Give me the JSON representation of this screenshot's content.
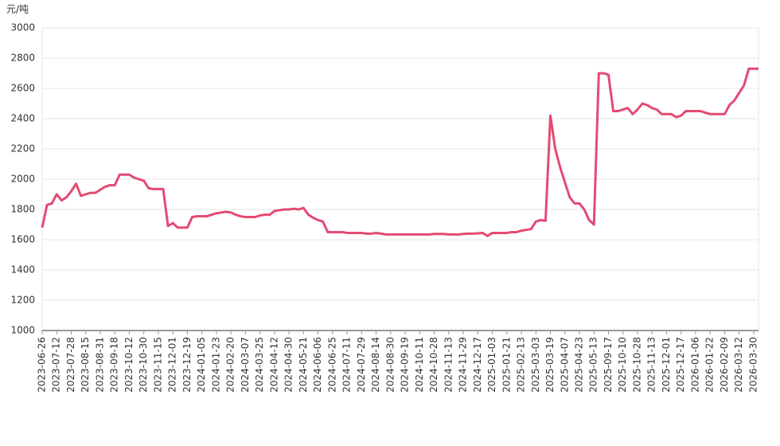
{
  "chart_data": {
    "type": "line",
    "y_label": "元/吨",
    "categories": [
      "2023-06-26",
      null,
      null,
      "2023-07-12",
      null,
      null,
      "2023-07-28",
      null,
      null,
      "2023-08-15",
      null,
      null,
      "2023-08-31",
      null,
      null,
      "2023-09-18",
      null,
      null,
      "2023-10-12",
      null,
      null,
      "2023-10-30",
      null,
      null,
      "2023-11-15",
      null,
      null,
      "2023-12-01",
      null,
      null,
      "2023-12-19",
      null,
      null,
      "2024-01-05",
      null,
      null,
      "2024-01-23",
      null,
      null,
      "2024-02-20",
      null,
      null,
      "2024-03-07",
      null,
      null,
      "2024-03-25",
      null,
      null,
      "2024-04-12",
      null,
      null,
      "2024-04-30",
      null,
      null,
      "2024-05-21",
      null,
      null,
      "2024-06-06",
      null,
      null,
      "2024-06-25",
      null,
      null,
      "2024-07-11",
      null,
      null,
      "2024-07-29",
      null,
      null,
      "2024-08-14",
      null,
      null,
      "2024-08-30",
      null,
      null,
      "2024-09-19",
      null,
      null,
      "2024-10-11",
      null,
      null,
      "2024-10-28",
      null,
      null,
      "2024-11-13",
      null,
      null,
      "2024-11-29",
      null,
      null,
      "2024-12-17",
      null,
      null,
      "2025-01-03",
      null,
      null,
      "2025-01-21",
      null,
      null,
      "2025-02-13",
      null,
      null,
      "2025-03-03",
      null,
      null,
      "2025-03-19",
      null,
      null,
      "2025-04-07",
      null,
      null,
      "2025-04-23",
      null,
      null,
      "2025-05-13",
      null,
      null,
      "2025-09-17",
      null,
      null,
      "2025-10-10",
      null,
      null,
      "2025-10-28",
      null,
      null,
      "2025-11-13",
      null,
      null,
      "2025-12-01",
      null,
      null,
      "2025-12-17",
      null,
      null,
      "2026-01-06",
      null,
      null,
      "2026-01-22",
      null,
      null,
      "2026-02-09",
      null,
      null,
      "2026-03-12",
      null,
      null,
      "2026-03-30",
      null
    ],
    "series": [
      {
        "color": "#e34a73",
        "values": [
          1680,
          1830,
          1840,
          1900,
          1860,
          1880,
          1920,
          1970,
          1890,
          1900,
          1910,
          1910,
          1930,
          1950,
          1960,
          1960,
          2030,
          2030,
          2030,
          2010,
          2000,
          1990,
          1940,
          1935,
          1935,
          1935,
          1690,
          1710,
          1680,
          1680,
          1680,
          1750,
          1755,
          1755,
          1755,
          1765,
          1775,
          1780,
          1785,
          1780,
          1765,
          1755,
          1750,
          1750,
          1750,
          1760,
          1765,
          1765,
          1790,
          1795,
          1800,
          1800,
          1805,
          1800,
          1810,
          1765,
          1745,
          1730,
          1720,
          1650,
          1650,
          1650,
          1650,
          1645,
          1645,
          1645,
          1645,
          1640,
          1640,
          1645,
          1640,
          1635,
          1635,
          1635,
          1635,
          1635,
          1635,
          1635,
          1635,
          1635,
          1635,
          1638,
          1638,
          1638,
          1635,
          1635,
          1635,
          1638,
          1640,
          1640,
          1642,
          1645,
          1625,
          1645,
          1645,
          1645,
          1645,
          1650,
          1650,
          1660,
          1665,
          1670,
          1720,
          1730,
          1725,
          2420,
          2200,
          2080,
          1980,
          1880,
          1840,
          1840,
          1800,
          1730,
          1700,
          2700,
          2700,
          2690,
          2450,
          2450,
          2460,
          2470,
          2430,
          2460,
          2500,
          2490,
          2470,
          2460,
          2430,
          2430,
          2430,
          2410,
          2420,
          2450,
          2450,
          2450,
          2450,
          2440,
          2430,
          2430,
          2430,
          2430,
          2490,
          2520,
          2570,
          2620,
          2730,
          2730,
          2730
        ]
      }
    ],
    "ylim": [
      1000,
      3000
    ],
    "yticks": [
      1000,
      1200,
      1400,
      1600,
      1800,
      2000,
      2200,
      2400,
      2600,
      2800,
      3000
    ],
    "grid": true
  }
}
